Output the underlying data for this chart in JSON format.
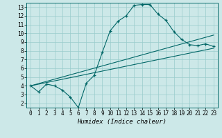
{
  "title": "",
  "xlabel": "Humidex (Indice chaleur)",
  "xlim": [
    -0.5,
    23.5
  ],
  "ylim": [
    1.5,
    13.5
  ],
  "xticks": [
    0,
    1,
    2,
    3,
    4,
    5,
    6,
    7,
    8,
    9,
    10,
    11,
    12,
    13,
    14,
    15,
    16,
    17,
    18,
    19,
    20,
    21,
    22,
    23
  ],
  "yticks": [
    2,
    3,
    4,
    5,
    6,
    7,
    8,
    9,
    10,
    11,
    12,
    13
  ],
  "bg_color": "#cce8e8",
  "line_color": "#006666",
  "grid_color": "#99cccc",
  "curve1_x": [
    0,
    1,
    2,
    3,
    4,
    5,
    6,
    7,
    8,
    9,
    10,
    11,
    12,
    13,
    14,
    15,
    16,
    17,
    18,
    19,
    20,
    21,
    22,
    23
  ],
  "curve1_y": [
    4.0,
    3.3,
    4.2,
    4.0,
    3.5,
    2.7,
    1.5,
    4.3,
    5.2,
    7.8,
    10.3,
    11.4,
    12.0,
    13.2,
    13.3,
    13.3,
    12.2,
    11.5,
    10.2,
    9.3,
    8.7,
    8.6,
    8.8,
    8.5
  ],
  "curve2_x": [
    0,
    23
  ],
  "curve2_y": [
    4.0,
    8.3
  ],
  "curve3_x": [
    0,
    23
  ],
  "curve3_y": [
    4.0,
    9.8
  ],
  "xlabel_fontsize": 6.5,
  "tick_fontsize": 5.5
}
